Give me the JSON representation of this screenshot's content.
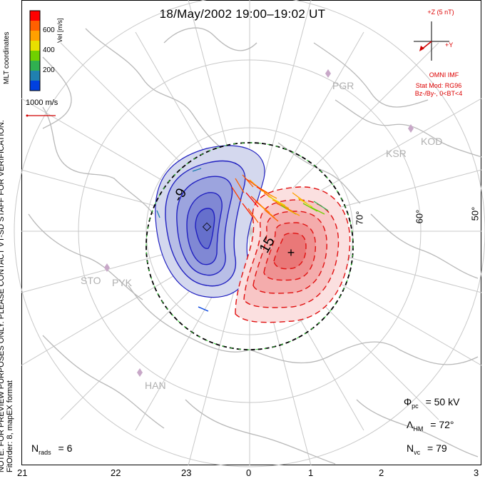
{
  "header": {
    "title": "18/May/2002 19:00–19:02 UT"
  },
  "side_note": {
    "line1": "NOTE: FOR PREVIEW PURPOSES ONLY. PLEASE CONTACT VT-SD STAFF FOR VERIFICATION.",
    "line2": "FitOrder: 8, mapEX format"
  },
  "legend": {
    "title": "Vel [m/s]",
    "coord_label": "MLT coordinates",
    "ticks": [
      "600",
      "400",
      "200"
    ],
    "colors": [
      "#ff0000",
      "#ff6000",
      "#ffa000",
      "#e8e000",
      "#70d000",
      "#30b050",
      "#2080b0",
      "#0040e0"
    ],
    "scale_label": "1000 m/s"
  },
  "imf": {
    "z_label": "+Z (5 nT)",
    "y_label": "+Y",
    "source": "OMNI IMF",
    "stat_mod": "Stat Mod: RG96",
    "condition": "Bz-/By-, 0<BT<4"
  },
  "stats": {
    "phi_pc": "= 50 kV",
    "lambda_hm": "= 72°",
    "n_vc": "= 79",
    "n_rads": "= 6",
    "phi_sym": "Φ",
    "phi_sub": "pc",
    "lambda_sym": "Λ",
    "lambda_sub": "HM",
    "nvc_sym": "N",
    "nvc_sub": "vc",
    "nrads_sym": "N",
    "nrads_sub": "rads"
  },
  "mlt_axis": [
    "21",
    "22",
    "23",
    "0",
    "1",
    "2",
    "3"
  ],
  "lat_labels": [
    "70°",
    "60°",
    "50°"
  ],
  "contour_labels": {
    "negative": "-9",
    "positive": "15"
  },
  "sites": [
    "PGR",
    "KSR",
    "KOD",
    "STO",
    "PYK",
    "HAN"
  ],
  "colors": {
    "negative": "#2020c0",
    "positive": "#e01010",
    "imf": "#d00000",
    "grid": "#c8c8c8",
    "site": "#c8a8c8"
  }
}
